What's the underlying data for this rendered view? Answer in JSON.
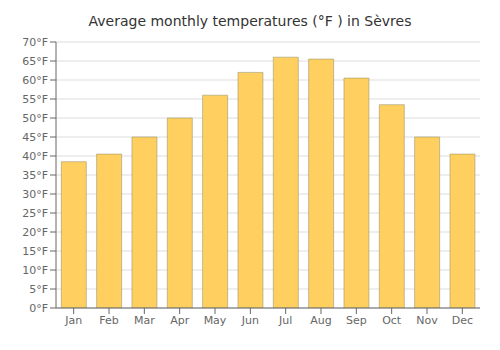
{
  "chart_data": {
    "type": "bar",
    "title": "Average monthly temperatures (°F ) in Sèvres",
    "categories": [
      "Jan",
      "Feb",
      "Mar",
      "Apr",
      "May",
      "Jun",
      "Jul",
      "Aug",
      "Sep",
      "Oct",
      "Nov",
      "Dec"
    ],
    "values": [
      38.5,
      40.5,
      45.0,
      50.0,
      56.0,
      62.0,
      66.0,
      65.5,
      60.5,
      53.5,
      45.0,
      40.5
    ],
    "color": "#FFD060",
    "ylim": [
      0,
      70
    ],
    "yticks": [
      {
        "value": 0,
        "label": "0°F"
      },
      {
        "value": 5,
        "label": "5°F"
      },
      {
        "value": 10,
        "label": "10°F"
      },
      {
        "value": 15,
        "label": "15°F"
      },
      {
        "value": 20,
        "label": "20°F"
      },
      {
        "value": 25,
        "label": "25°F"
      },
      {
        "value": 30,
        "label": "30°F"
      },
      {
        "value": 35,
        "label": "35°F"
      },
      {
        "value": 40,
        "label": "40°F"
      },
      {
        "value": 45,
        "label": "45°F"
      },
      {
        "value": 50,
        "label": "50°F"
      },
      {
        "value": 55,
        "label": "55°F"
      },
      {
        "value": 60,
        "label": "60°F"
      },
      {
        "value": 65,
        "label": "65°F"
      },
      {
        "value": 70,
        "label": "70°F"
      }
    ],
    "grid": true
  }
}
